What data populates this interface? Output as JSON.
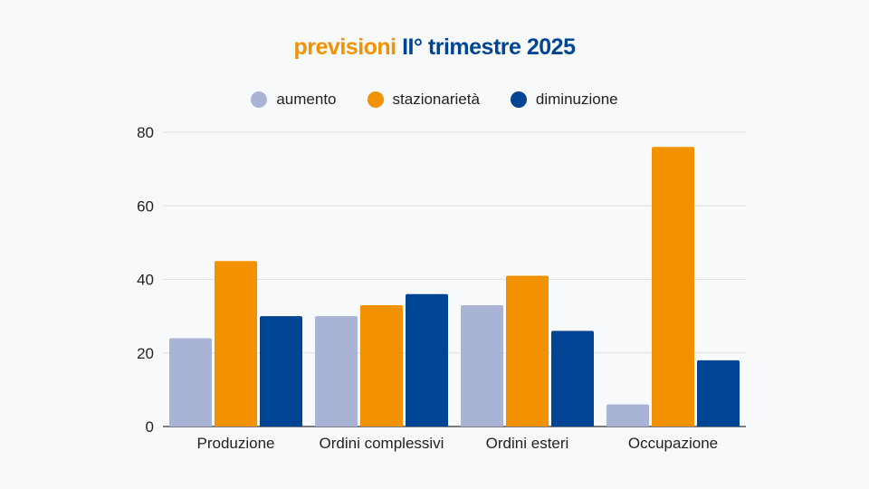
{
  "chart_data": {
    "type": "bar",
    "title_part1": "previsioni",
    "title_part2": "II° trimestre 2025",
    "categories": [
      "Produzione",
      "Ordini complessivi",
      "Ordini esteri",
      "Occupazione"
    ],
    "series": [
      {
        "name": "aumento",
        "color": "#a8b3d6",
        "values": [
          24,
          30,
          33,
          6
        ]
      },
      {
        "name": "stazionarietà",
        "color": "#f39200",
        "values": [
          45,
          33,
          41,
          76
        ]
      },
      {
        "name": "diminuzione",
        "color": "#004494",
        "values": [
          30,
          36,
          26,
          18
        ]
      }
    ],
    "ylim": [
      0,
      80
    ],
    "yticks": [
      0,
      20,
      40,
      60,
      80
    ],
    "grid": true,
    "legend_position": "top-center"
  }
}
